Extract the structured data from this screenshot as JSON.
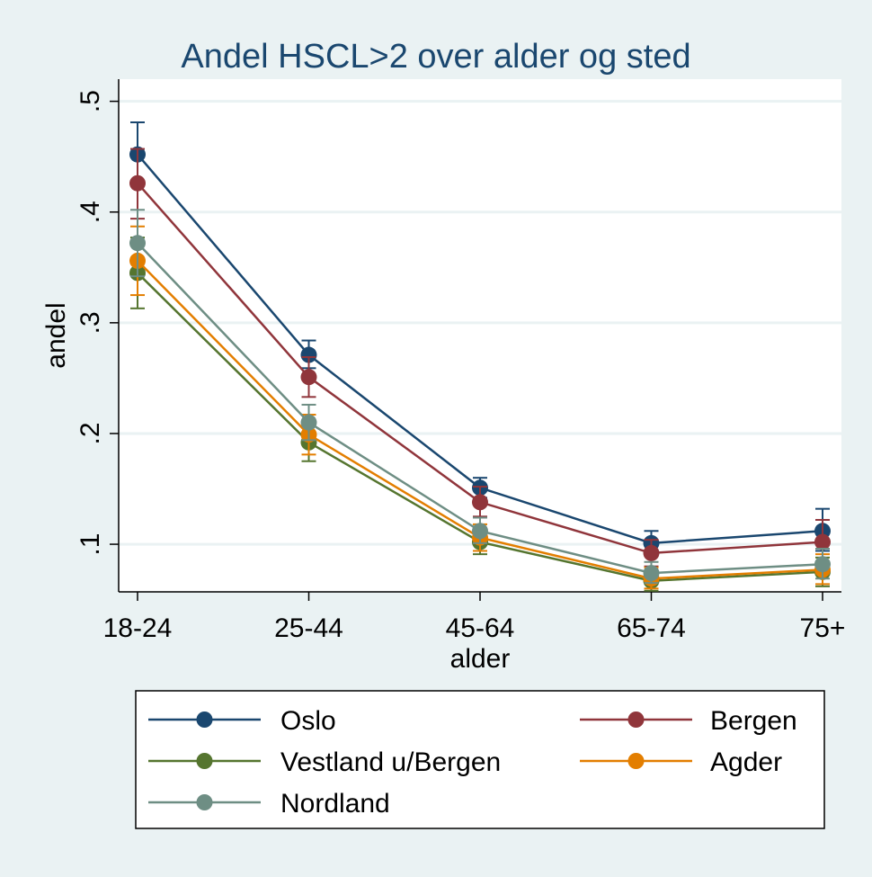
{
  "chart_data": {
    "type": "line",
    "title": "Andel HSCL>2 over alder og sted",
    "xlabel": "alder",
    "ylabel": "andel",
    "categories": [
      "18-24",
      "25-44",
      "45-64",
      "65-74",
      "75+"
    ],
    "yticks": [
      ".1",
      ".2",
      ".3",
      ".4",
      ".5"
    ],
    "ytick_values": [
      0.1,
      0.2,
      0.3,
      0.4,
      0.5
    ],
    "ylim": [
      0.057,
      0.52
    ],
    "grid": true,
    "legend_position": "bottom",
    "series": [
      {
        "name": "Oslo",
        "color": "#1a476f",
        "values": [
          0.452,
          0.271,
          0.151,
          0.101,
          0.112
        ],
        "lower": [
          0.424,
          0.259,
          0.142,
          0.091,
          0.094
        ],
        "upper": [
          0.481,
          0.284,
          0.16,
          0.112,
          0.132
        ]
      },
      {
        "name": "Bergen",
        "color": "#90353b",
        "values": [
          0.426,
          0.251,
          0.138,
          0.092,
          0.102
        ],
        "lower": [
          0.394,
          0.233,
          0.125,
          0.08,
          0.084
        ],
        "upper": [
          0.457,
          0.269,
          0.152,
          0.104,
          0.122
        ]
      },
      {
        "name": "Vestland u/Bergen",
        "color": "#55752f",
        "values": [
          0.345,
          0.192,
          0.102,
          0.067,
          0.075
        ],
        "lower": [
          0.313,
          0.175,
          0.091,
          0.058,
          0.062
        ],
        "upper": [
          0.377,
          0.209,
          0.113,
          0.076,
          0.088
        ]
      },
      {
        "name": "Agder",
        "color": "#e37e00",
        "values": [
          0.356,
          0.199,
          0.106,
          0.069,
          0.077
        ],
        "lower": [
          0.325,
          0.181,
          0.094,
          0.06,
          0.064
        ],
        "upper": [
          0.387,
          0.217,
          0.118,
          0.079,
          0.091
        ]
      },
      {
        "name": "Nordland",
        "color": "#6e8e84",
        "values": [
          0.372,
          0.21,
          0.112,
          0.074,
          0.082
        ],
        "lower": [
          0.342,
          0.194,
          0.101,
          0.065,
          0.069
        ],
        "upper": [
          0.402,
          0.226,
          0.124,
          0.084,
          0.096
        ]
      }
    ]
  }
}
